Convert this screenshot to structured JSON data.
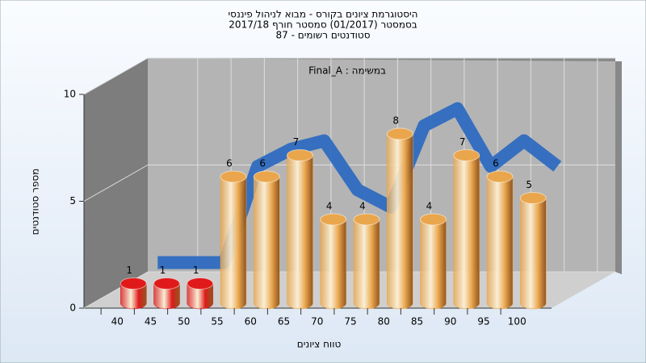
{
  "chart_data": {
    "type": "bar3d",
    "title": [
      "היסטוגרמת ציונים בקורס - מבוא לניהול פיננסי",
      "בסמסטר  (01/2017)  סמסטר חורף  2017/18",
      "סטודנטים רשומים - 87"
    ],
    "annotation": "Final_A : במשימה",
    "x_label": "טווח ציונים",
    "y_label": "מספר סטודנטים",
    "categories": [
      "40",
      "45",
      "50",
      "55",
      "60",
      "65",
      "70",
      "75",
      "80",
      "85",
      "90",
      "95",
      "100"
    ],
    "values": [
      1,
      1,
      1,
      6,
      6,
      7,
      4,
      4,
      8,
      4,
      7,
      6,
      5
    ],
    "colors": [
      "#e01a1a",
      "#e01a1a",
      "#e01a1a",
      "#eaa64c",
      "#eaa64c",
      "#eaa64c",
      "#eaa64c",
      "#eaa64c",
      "#eaa64c",
      "#eaa64c",
      "#eaa64c",
      "#eaa64c",
      "#eaa64c"
    ],
    "trend_values": [
      1,
      1,
      1,
      5.5,
      6.3,
      6.7,
      4.4,
      3.6,
      7.4,
      8.2,
      5.5,
      6.7,
      5.5
    ],
    "trend_color": "#2f6cc0",
    "ylim": [
      0,
      10
    ],
    "yticks": [
      0,
      5,
      10
    ],
    "grid": true
  }
}
